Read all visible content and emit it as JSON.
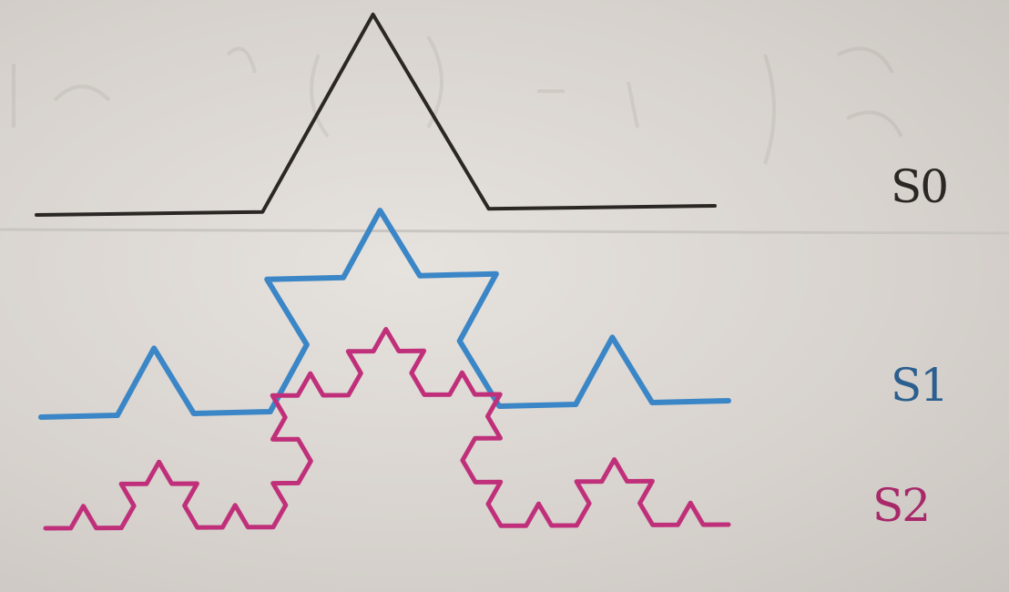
{
  "labels": {
    "s0": "S0",
    "s1": "S1",
    "s2": "S2"
  },
  "curves": [
    {
      "name": "S0",
      "iterations": 1,
      "color": "#2b2724"
    },
    {
      "name": "S1",
      "iterations": 2,
      "color": "#3b86c6"
    },
    {
      "name": "S2",
      "iterations": 3,
      "color": "#c0307a"
    }
  ]
}
